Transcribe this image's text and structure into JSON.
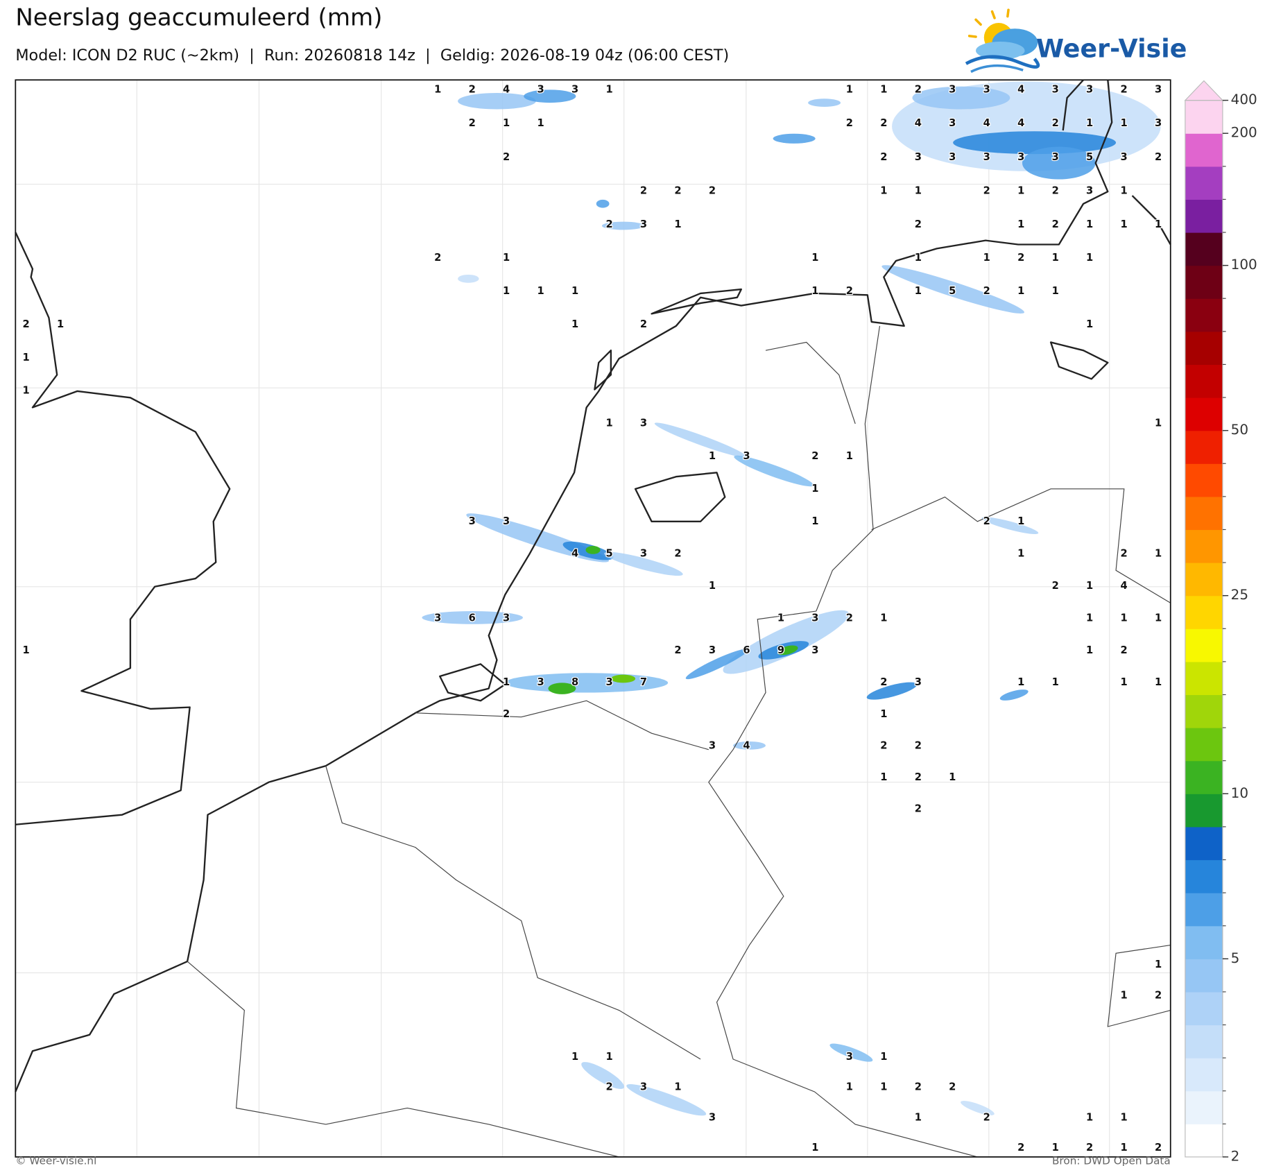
{
  "header": {
    "title": "Neerslag geaccumuleerd (mm)",
    "subtitle": "Model: ICON D2 RUC (~2km)  |  Run: 20260818 14z  |  Geldig: 2026-08-19 04z (06:00 CEST)"
  },
  "logo": {
    "text": "Weer-Visie"
  },
  "precip": {
    "grid": [
      [
        null,
        null,
        null,
        null,
        null,
        null,
        null,
        null,
        null,
        null,
        null,
        null,
        1,
        2,
        4,
        3,
        3,
        1,
        null,
        null,
        null,
        null,
        null,
        null,
        1,
        1,
        2,
        3,
        3,
        4,
        3,
        3,
        2,
        3
      ],
      [
        null,
        null,
        null,
        null,
        null,
        null,
        null,
        null,
        null,
        null,
        null,
        null,
        null,
        2,
        1,
        1,
        null,
        null,
        null,
        null,
        null,
        null,
        null,
        null,
        2,
        2,
        4,
        3,
        4,
        4,
        2,
        1,
        1,
        3
      ],
      [
        null,
        null,
        null,
        null,
        null,
        null,
        null,
        null,
        null,
        null,
        null,
        null,
        null,
        null,
        2,
        null,
        null,
        null,
        null,
        null,
        null,
        null,
        null,
        null,
        null,
        2,
        3,
        3,
        3,
        3,
        3,
        5,
        3,
        2
      ],
      [
        null,
        null,
        null,
        null,
        null,
        null,
        null,
        null,
        null,
        null,
        null,
        null,
        null,
        null,
        null,
        null,
        null,
        null,
        2,
        2,
        2,
        null,
        null,
        null,
        null,
        1,
        1,
        null,
        2,
        1,
        2,
        3,
        1,
        null
      ],
      [
        null,
        null,
        null,
        null,
        null,
        null,
        null,
        null,
        null,
        null,
        null,
        null,
        null,
        null,
        null,
        null,
        null,
        2,
        3,
        1,
        null,
        null,
        null,
        null,
        null,
        null,
        2,
        null,
        null,
        1,
        2,
        1,
        1,
        1
      ],
      [
        null,
        null,
        null,
        null,
        null,
        null,
        null,
        null,
        null,
        null,
        null,
        null,
        2,
        null,
        1,
        null,
        null,
        null,
        null,
        null,
        null,
        null,
        null,
        1,
        null,
        null,
        1,
        null,
        1,
        2,
        1,
        1,
        null,
        null
      ],
      [
        null,
        null,
        null,
        null,
        null,
        null,
        null,
        null,
        null,
        null,
        null,
        null,
        null,
        null,
        1,
        1,
        1,
        null,
        null,
        null,
        null,
        null,
        null,
        1,
        2,
        null,
        1,
        5,
        2,
        1,
        1,
        null,
        null,
        null
      ],
      [
        2,
        1,
        null,
        null,
        null,
        null,
        null,
        null,
        null,
        null,
        null,
        null,
        null,
        null,
        null,
        null,
        1,
        null,
        2,
        null,
        null,
        null,
        null,
        null,
        null,
        null,
        null,
        null,
        null,
        null,
        null,
        1,
        null,
        null
      ],
      [
        1,
        null,
        null,
        null,
        null,
        null,
        null,
        null,
        null,
        null,
        null,
        null,
        null,
        null,
        null,
        null,
        null,
        null,
        null,
        null,
        null,
        null,
        null,
        null,
        null,
        null,
        null,
        null,
        null,
        null,
        null,
        null,
        null,
        null
      ],
      [
        1,
        null,
        null,
        null,
        null,
        null,
        null,
        null,
        null,
        null,
        null,
        null,
        null,
        null,
        null,
        null,
        null,
        null,
        null,
        null,
        null,
        null,
        null,
        null,
        null,
        null,
        null,
        null,
        null,
        null,
        null,
        null,
        null,
        null
      ],
      [
        null,
        null,
        null,
        null,
        null,
        null,
        null,
        null,
        null,
        null,
        null,
        null,
        null,
        null,
        null,
        null,
        null,
        1,
        3,
        null,
        null,
        null,
        null,
        null,
        null,
        null,
        null,
        null,
        null,
        null,
        null,
        null,
        null,
        1
      ],
      [
        null,
        null,
        null,
        null,
        null,
        null,
        null,
        null,
        null,
        null,
        null,
        null,
        null,
        null,
        null,
        null,
        null,
        null,
        null,
        null,
        1,
        3,
        null,
        2,
        1,
        null,
        null,
        null,
        null,
        null,
        null,
        null,
        null,
        null
      ],
      [
        null,
        null,
        null,
        null,
        null,
        null,
        null,
        null,
        null,
        null,
        null,
        null,
        null,
        null,
        null,
        null,
        null,
        null,
        null,
        null,
        null,
        null,
        null,
        1,
        null,
        null,
        null,
        null,
        null,
        null,
        null,
        null,
        null,
        null
      ],
      [
        null,
        null,
        null,
        null,
        null,
        null,
        null,
        null,
        null,
        null,
        null,
        null,
        null,
        3,
        3,
        null,
        null,
        null,
        null,
        null,
        null,
        null,
        null,
        1,
        null,
        null,
        null,
        null,
        2,
        1,
        null,
        null,
        null,
        null
      ],
      [
        null,
        null,
        null,
        null,
        null,
        null,
        null,
        null,
        null,
        null,
        null,
        null,
        null,
        null,
        null,
        null,
        4,
        5,
        3,
        2,
        null,
        null,
        null,
        null,
        null,
        null,
        null,
        null,
        null,
        1,
        null,
        null,
        2,
        1
      ],
      [
        null,
        null,
        null,
        null,
        null,
        null,
        null,
        null,
        null,
        null,
        null,
        null,
        null,
        null,
        null,
        null,
        null,
        null,
        null,
        null,
        1,
        null,
        null,
        null,
        null,
        null,
        null,
        null,
        null,
        null,
        2,
        1,
        4,
        null
      ],
      [
        null,
        null,
        null,
        null,
        null,
        null,
        null,
        null,
        null,
        null,
        null,
        null,
        3,
        6,
        3,
        null,
        null,
        null,
        null,
        null,
        null,
        null,
        1,
        3,
        2,
        1,
        null,
        null,
        null,
        null,
        null,
        1,
        1,
        1
      ],
      [
        1,
        null,
        null,
        null,
        null,
        null,
        null,
        null,
        null,
        null,
        null,
        null,
        null,
        null,
        null,
        null,
        null,
        null,
        null,
        2,
        3,
        6,
        9,
        3,
        null,
        null,
        null,
        null,
        null,
        null,
        null,
        1,
        2,
        null
      ],
      [
        null,
        null,
        null,
        null,
        null,
        null,
        null,
        null,
        null,
        null,
        null,
        null,
        null,
        null,
        1,
        3,
        8,
        3,
        7,
        null,
        null,
        null,
        null,
        null,
        null,
        2,
        3,
        null,
        null,
        1,
        1,
        null,
        1,
        1
      ],
      [
        null,
        null,
        null,
        null,
        null,
        null,
        null,
        null,
        null,
        null,
        null,
        null,
        null,
        null,
        2,
        null,
        null,
        null,
        null,
        null,
        null,
        null,
        null,
        null,
        null,
        1,
        null,
        null,
        null,
        null,
        null,
        null,
        null,
        null
      ],
      [
        null,
        null,
        null,
        null,
        null,
        null,
        null,
        null,
        null,
        null,
        null,
        null,
        null,
        null,
        null,
        null,
        null,
        null,
        null,
        null,
        3,
        4,
        null,
        null,
        null,
        2,
        2,
        null,
        null,
        null,
        null,
        null,
        null,
        null
      ],
      [
        null,
        null,
        null,
        null,
        null,
        null,
        null,
        null,
        null,
        null,
        null,
        null,
        null,
        null,
        null,
        null,
        null,
        null,
        null,
        null,
        null,
        null,
        null,
        null,
        null,
        1,
        2,
        1,
        null,
        null,
        null,
        null,
        null,
        null
      ],
      [
        null,
        null,
        null,
        null,
        null,
        null,
        null,
        null,
        null,
        null,
        null,
        null,
        null,
        null,
        null,
        null,
        null,
        null,
        null,
        null,
        null,
        null,
        null,
        null,
        null,
        null,
        2,
        null,
        null,
        null,
        null,
        null,
        null,
        null
      ],
      [
        null,
        null,
        null,
        null,
        null,
        null,
        null,
        null,
        null,
        null,
        null,
        null,
        null,
        null,
        null,
        null,
        null,
        null,
        null,
        null,
        null,
        null,
        null,
        null,
        null,
        null,
        null,
        null,
        null,
        null,
        null,
        null,
        null,
        null
      ],
      [
        null,
        null,
        null,
        null,
        null,
        null,
        null,
        null,
        null,
        null,
        null,
        null,
        null,
        null,
        null,
        null,
        null,
        null,
        null,
        null,
        null,
        null,
        null,
        null,
        null,
        null,
        null,
        null,
        null,
        null,
        null,
        null,
        null,
        null
      ],
      [
        null,
        null,
        null,
        null,
        null,
        null,
        null,
        null,
        null,
        null,
        null,
        null,
        null,
        null,
        null,
        null,
        null,
        null,
        null,
        null,
        null,
        null,
        null,
        null,
        null,
        null,
        null,
        null,
        null,
        null,
        null,
        null,
        null,
        null
      ],
      [
        null,
        null,
        null,
        null,
        null,
        null,
        null,
        null,
        null,
        null,
        null,
        null,
        null,
        null,
        null,
        null,
        null,
        null,
        null,
        null,
        null,
        null,
        null,
        null,
        null,
        null,
        null,
        null,
        null,
        null,
        null,
        null,
        null,
        null
      ],
      [
        null,
        null,
        null,
        null,
        null,
        null,
        null,
        null,
        null,
        null,
        null,
        null,
        null,
        null,
        null,
        null,
        null,
        null,
        null,
        null,
        null,
        null,
        null,
        null,
        null,
        null,
        null,
        null,
        null,
        null,
        null,
        null,
        null,
        1
      ],
      [
        null,
        null,
        null,
        null,
        null,
        null,
        null,
        null,
        null,
        null,
        null,
        null,
        null,
        null,
        null,
        null,
        null,
        null,
        null,
        null,
        null,
        null,
        null,
        null,
        null,
        null,
        null,
        null,
        null,
        null,
        null,
        null,
        1,
        2
      ],
      [
        null,
        null,
        null,
        null,
        null,
        null,
        null,
        null,
        null,
        null,
        null,
        null,
        null,
        null,
        null,
        null,
        null,
        null,
        null,
        null,
        null,
        null,
        null,
        null,
        null,
        null,
        null,
        null,
        null,
        null,
        null,
        null,
        null,
        null
      ],
      [
        null,
        null,
        null,
        null,
        null,
        null,
        null,
        null,
        null,
        null,
        null,
        null,
        null,
        null,
        null,
        null,
        1,
        1,
        null,
        null,
        null,
        null,
        null,
        null,
        3,
        1,
        null,
        null,
        null,
        null,
        null,
        null,
        null,
        null
      ],
      [
        null,
        null,
        null,
        null,
        null,
        null,
        null,
        null,
        null,
        null,
        null,
        null,
        null,
        null,
        null,
        null,
        null,
        2,
        3,
        1,
        null,
        null,
        null,
        null,
        1,
        1,
        2,
        2,
        null,
        null,
        null,
        null,
        null,
        null
      ],
      [
        null,
        null,
        null,
        null,
        null,
        null,
        null,
        null,
        null,
        null,
        null,
        null,
        null,
        null,
        null,
        null,
        null,
        null,
        null,
        null,
        3,
        null,
        null,
        null,
        null,
        null,
        1,
        null,
        2,
        null,
        null,
        1,
        1,
        null
      ],
      [
        null,
        null,
        null,
        null,
        null,
        null,
        null,
        null,
        null,
        null,
        null,
        null,
        null,
        null,
        null,
        null,
        null,
        null,
        null,
        null,
        null,
        null,
        null,
        1,
        null,
        null,
        null,
        null,
        null,
        2,
        1,
        2,
        1,
        2
      ]
    ]
  },
  "colorbar": {
    "levels": [
      2,
      2.5,
      3,
      3.5,
      4,
      4.5,
      5,
      6,
      7,
      8,
      9,
      10,
      12,
      14,
      16,
      18,
      20,
      25,
      30,
      35,
      40,
      45,
      50,
      60,
      70,
      80,
      90,
      100,
      125,
      150,
      175,
      200,
      400
    ],
    "colors": [
      "#ffffff",
      "#eaf3fc",
      "#d8e9fb",
      "#c4def9",
      "#aed2f7",
      "#96c6f4",
      "#80bdf1",
      "#4d9fe7",
      "#2685db",
      "#0e62c8",
      "#18992f",
      "#3bb322",
      "#6cc60f",
      "#a0d60a",
      "#cbe500",
      "#f8f800",
      "#ffd600",
      "#ffb800",
      "#ff9600",
      "#ff7200",
      "#ff4a00",
      "#ef2000",
      "#dd0000",
      "#c30000",
      "#a60000",
      "#8a0010",
      "#6e0015",
      "#55001e",
      "#7a1fa0",
      "#a43ec0",
      "#e065cf",
      "#fcd4ef"
    ],
    "extend_color": "#fcd4ef",
    "ticks": [
      2,
      5,
      10,
      25,
      50,
      100,
      200,
      400
    ]
  },
  "footer": {
    "left": "© Weer-visie.nl",
    "right": "Bron: DWD Open Data"
  }
}
